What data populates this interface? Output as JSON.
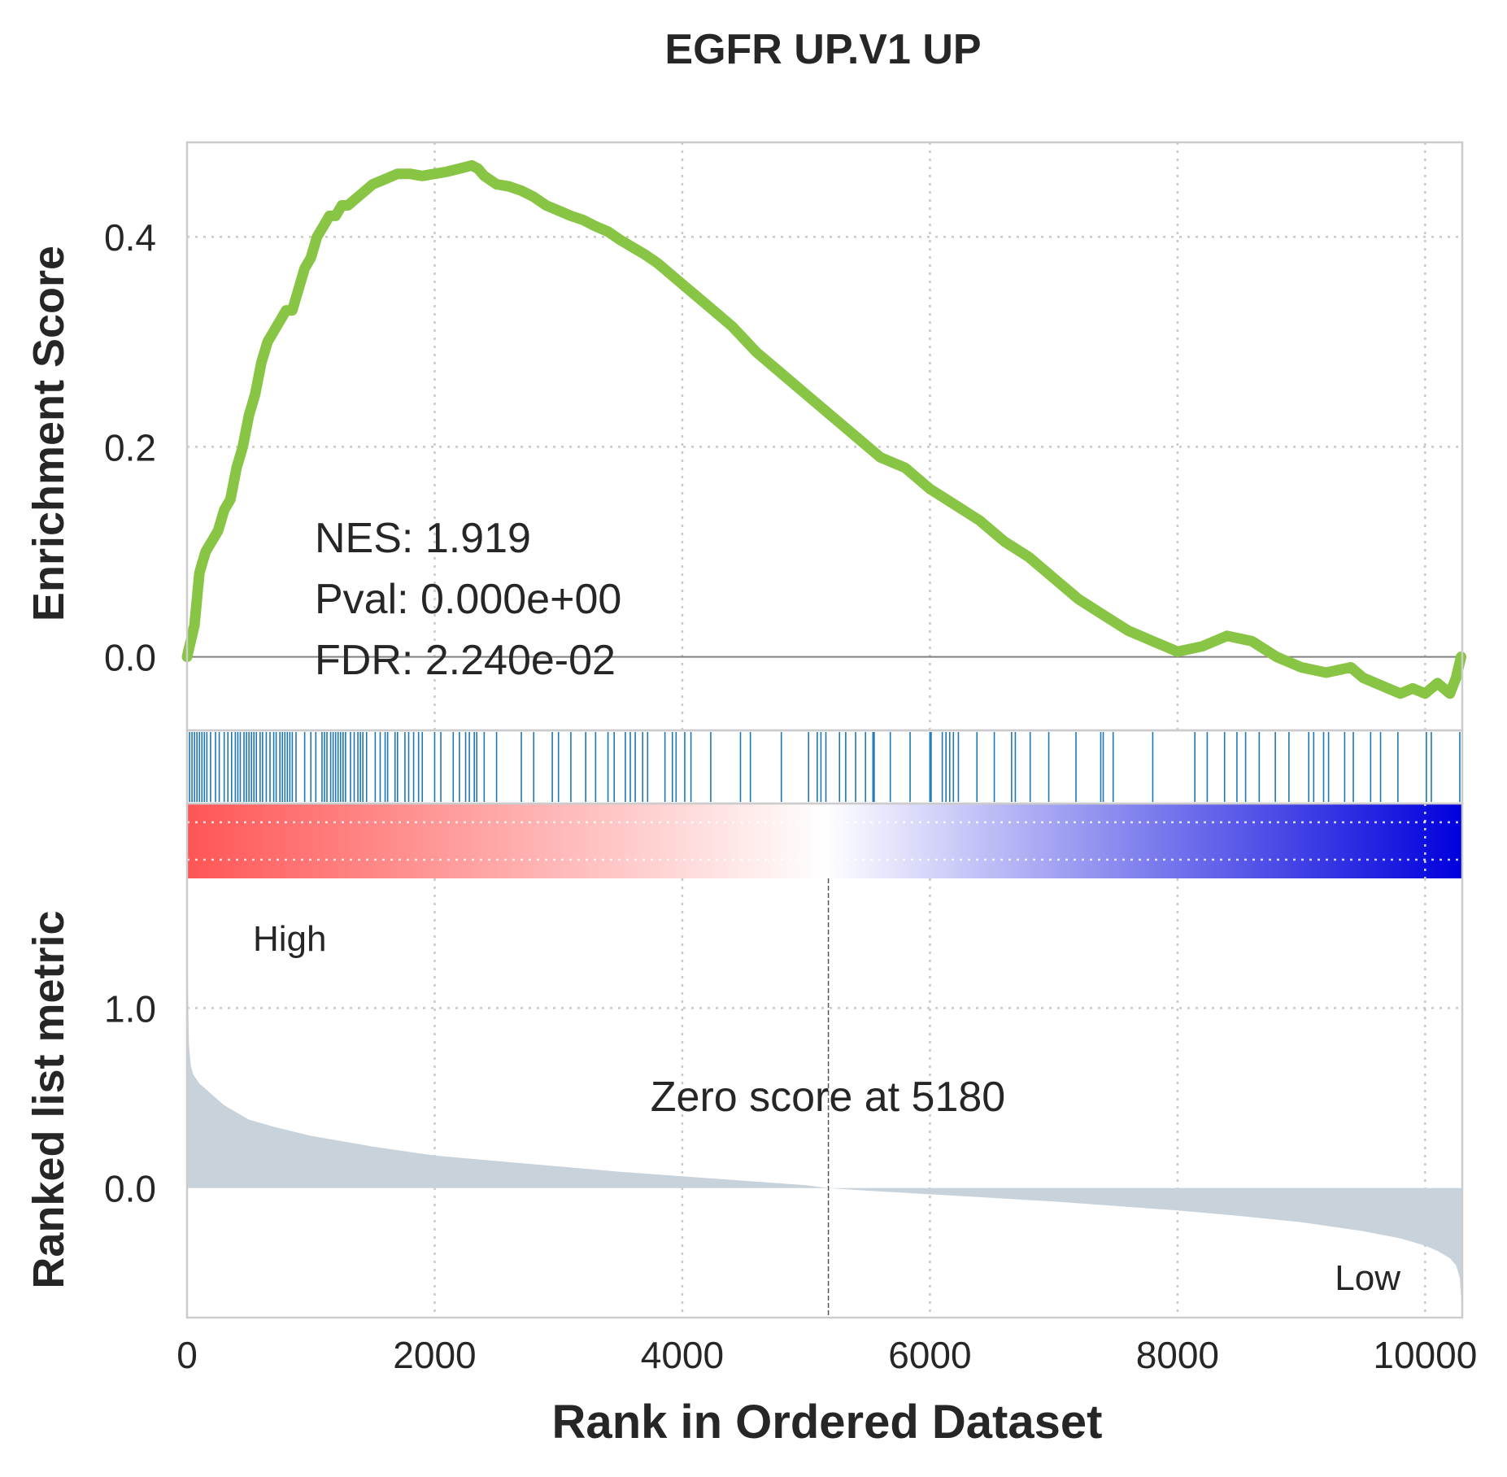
{
  "chart_data": {
    "type": "line",
    "title": "EGFR UP.V1 UP",
    "xlabel": "Rank in Ordered Dataset",
    "ylabel_top": "Enrichment Score",
    "ylabel_bottom": "Ranked list metric",
    "xlim": [
      0,
      10300
    ],
    "x_ticks": [
      0,
      2000,
      4000,
      6000,
      8000,
      10000
    ],
    "top_panel": {
      "ylim": [
        -0.07,
        0.49
      ],
      "y_ticks": [
        0.0,
        0.2,
        0.4
      ],
      "y_tick_labels": [
        "0.0",
        "0.2",
        "0.4"
      ],
      "line_color": "#88c544",
      "series": [
        {
          "x": [
            0,
            60,
            100,
            150,
            200,
            250,
            300,
            350,
            400,
            450,
            500,
            550,
            600,
            650,
            700,
            750,
            800,
            850,
            900,
            950,
            1000,
            1050,
            1100,
            1150,
            1200,
            1250,
            1300,
            1400,
            1500,
            1600,
            1700,
            1800,
            1900,
            2000,
            2100,
            2200,
            2300,
            2350,
            2400,
            2500,
            2600,
            2700,
            2800,
            2900,
            3000,
            3100,
            3200,
            3300,
            3400,
            3500,
            3600,
            3700,
            3800,
            3900,
            4000,
            4200,
            4400,
            4600,
            4800,
            5000,
            5200,
            5400,
            5600,
            5800,
            6000,
            6200,
            6400,
            6600,
            6800,
            7000,
            7200,
            7400,
            7600,
            7800,
            8000,
            8200,
            8400,
            8600,
            8800,
            9000,
            9200,
            9400,
            9500,
            9600,
            9700,
            9800,
            9900,
            10000,
            10100,
            10150,
            10200,
            10250,
            10290
          ],
          "y": [
            0.0,
            0.03,
            0.08,
            0.1,
            0.11,
            0.12,
            0.14,
            0.15,
            0.18,
            0.2,
            0.23,
            0.25,
            0.28,
            0.3,
            0.31,
            0.32,
            0.33,
            0.33,
            0.35,
            0.37,
            0.38,
            0.4,
            0.41,
            0.42,
            0.42,
            0.43,
            0.43,
            0.44,
            0.45,
            0.455,
            0.46,
            0.46,
            0.458,
            0.46,
            0.462,
            0.465,
            0.468,
            0.465,
            0.458,
            0.45,
            0.448,
            0.444,
            0.438,
            0.43,
            0.425,
            0.42,
            0.416,
            0.41,
            0.405,
            0.397,
            0.39,
            0.383,
            0.375,
            0.365,
            0.355,
            0.335,
            0.315,
            0.29,
            0.27,
            0.25,
            0.23,
            0.21,
            0.19,
            0.18,
            0.16,
            0.145,
            0.13,
            0.11,
            0.095,
            0.075,
            0.055,
            0.04,
            0.025,
            0.015,
            0.005,
            0.01,
            0.02,
            0.015,
            0.0,
            -0.01,
            -0.015,
            -0.01,
            -0.02,
            -0.025,
            -0.03,
            -0.035,
            -0.03,
            -0.035,
            -0.025,
            -0.03,
            -0.035,
            -0.02,
            0.0
          ]
        }
      ],
      "annotations": [
        "NES: 1.919",
        "Pval: 0.000e+00",
        "FDR: 2.240e-02"
      ]
    },
    "hits_panel": {
      "color": "#1f77b4",
      "hit_ranks": [
        20,
        40,
        60,
        80,
        100,
        120,
        140,
        160,
        190,
        230,
        260,
        300,
        330,
        360,
        390,
        410,
        430,
        460,
        480,
        500,
        520,
        540,
        560,
        590,
        610,
        640,
        670,
        700,
        720,
        750,
        770,
        790,
        810,
        830,
        850,
        880,
        950,
        1000,
        1040,
        1090,
        1110,
        1130,
        1160,
        1180,
        1200,
        1220,
        1240,
        1260,
        1280,
        1320,
        1350,
        1380,
        1400,
        1420,
        1450,
        1520,
        1560,
        1600,
        1620,
        1680,
        1700,
        1760,
        1790,
        1830,
        1870,
        1900,
        2000,
        2050,
        2150,
        2200,
        2250,
        2280,
        2320,
        2340,
        2400,
        2500,
        2700,
        2800,
        2950,
        3000,
        3100,
        3220,
        3300,
        3400,
        3450,
        3540,
        3580,
        3620,
        3680,
        3720,
        3860,
        3920,
        3950,
        4020,
        4070,
        4230,
        4470,
        4550,
        4800,
        5020,
        5090,
        5120,
        5160,
        5270,
        5320,
        5400,
        5480,
        5540,
        5550,
        5680,
        5840,
        6000,
        6010,
        6100,
        6130,
        6160,
        6190,
        6230,
        6380,
        6520,
        6660,
        6690,
        6810,
        6960,
        7180,
        7380,
        7400,
        7480,
        7800,
        8140,
        8240,
        8380,
        8480,
        8550,
        8660,
        8790,
        8900,
        9060,
        9100,
        9180,
        9220,
        9350,
        9420,
        9560,
        9640,
        9780,
        10010,
        10050,
        10280
      ]
    },
    "colorbar": {
      "colors": [
        "#ff5555",
        "#ffffff",
        "#0000dd"
      ]
    },
    "bottom_panel": {
      "ylim": [
        -0.72,
        1.72
      ],
      "y_ticks": [
        0.0,
        1.0
      ],
      "y_tick_labels": [
        "0.0",
        "1.0"
      ],
      "fill_color": "#c8d2db",
      "series": [
        {
          "x": [
            0,
            8,
            15,
            30,
            50,
            80,
            100,
            150,
            200,
            300,
            400,
            500,
            700,
            1000,
            1500,
            2000,
            2500,
            3000,
            3500,
            4000,
            4500,
            5000,
            5180,
            5500,
            6000,
            6500,
            7000,
            7500,
            8000,
            8500,
            9000,
            9500,
            9800,
            10000,
            10100,
            10200,
            10250,
            10280,
            10290,
            10300
          ],
          "y": [
            1.7,
            1.1,
            0.8,
            0.68,
            0.63,
            0.6,
            0.58,
            0.55,
            0.52,
            0.46,
            0.42,
            0.38,
            0.34,
            0.29,
            0.23,
            0.18,
            0.15,
            0.12,
            0.09,
            0.065,
            0.04,
            0.015,
            0.0,
            -0.015,
            -0.035,
            -0.055,
            -0.075,
            -0.1,
            -0.125,
            -0.155,
            -0.19,
            -0.24,
            -0.28,
            -0.32,
            -0.35,
            -0.39,
            -0.43,
            -0.5,
            -0.6,
            -0.72
          ]
        }
      ],
      "zero_cross": 5180,
      "zero_label": "Zero score at 5180",
      "high_label": "High",
      "low_label": "Low",
      "high_color": "#ff0000",
      "low_color": "#0000ff"
    },
    "grid": true
  }
}
